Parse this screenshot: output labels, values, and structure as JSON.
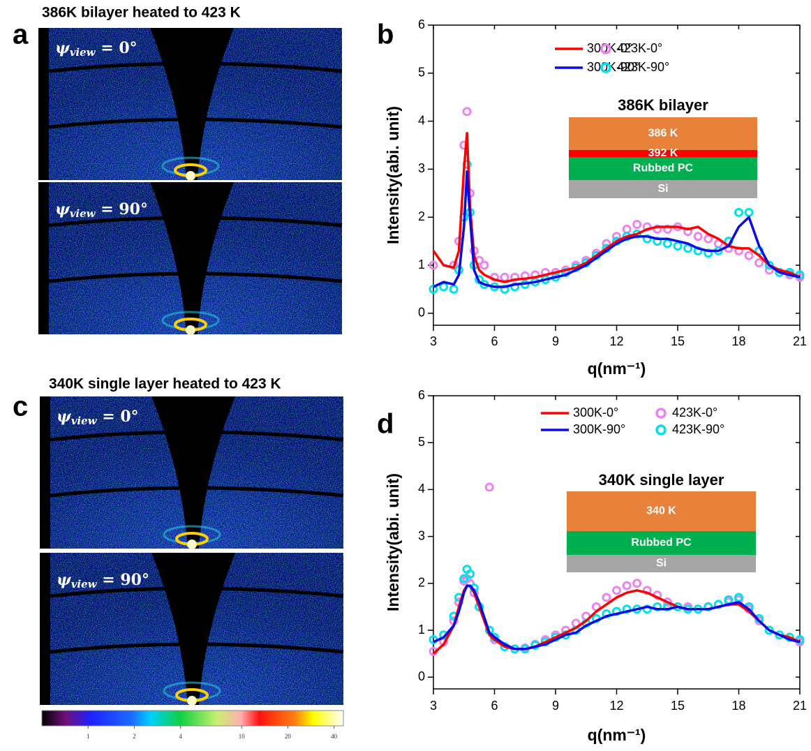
{
  "panel_labels": [
    "a",
    "b",
    "c",
    "d"
  ],
  "images": [
    {
      "title": "386K bilayer heated to 423 K",
      "views": [
        {
          "symbol": "ψ",
          "sub": "view",
          "eq": " = 0°"
        },
        {
          "symbol": "ψ",
          "sub": "view",
          "eq": " = 90°"
        }
      ]
    },
    {
      "title": "340K single layer heated to 423 K",
      "views": [
        {
          "symbol": "ψ",
          "sub": "view",
          "eq": " = 0°"
        },
        {
          "symbol": "ψ",
          "sub": "view",
          "eq": " = 90°"
        }
      ]
    }
  ],
  "colorbar": {
    "scale": "log",
    "lim": [
      0.5,
      46
    ],
    "ticks": [
      1,
      2,
      4,
      10,
      20,
      40
    ]
  },
  "chart_data": [
    {
      "type": "line",
      "xlabel": "q(nm⁻¹)",
      "ylabel": "Intensity(abi. unit)",
      "xlim": [
        3,
        21
      ],
      "ylim": [
        -0.25,
        6
      ],
      "xticks": [
        3,
        6,
        9,
        12,
        15,
        18,
        21
      ],
      "yticks": [
        0,
        1,
        2,
        3,
        4,
        5,
        6
      ],
      "x": [
        3,
        3.5,
        4,
        4.25,
        4.5,
        4.65,
        4.8,
        5,
        5.25,
        5.5,
        6,
        6.5,
        7,
        7.5,
        8,
        8.5,
        9,
        9.5,
        10,
        10.5,
        11,
        11.5,
        12,
        12.5,
        13,
        13.5,
        14,
        14.5,
        15,
        15.5,
        16,
        16.5,
        17,
        17.5,
        18,
        18.5,
        19,
        19.5,
        20,
        20.5,
        21
      ],
      "series": [
        {
          "name": "300K-0°",
          "color": "#ff0000",
          "style": "line",
          "values": [
            1.3,
            1.0,
            0.95,
            1.3,
            3.0,
            3.75,
            2.2,
            1.2,
            0.9,
            0.8,
            0.7,
            0.65,
            0.7,
            0.72,
            0.75,
            0.8,
            0.85,
            0.9,
            0.95,
            1.05,
            1.2,
            1.35,
            1.5,
            1.6,
            1.65,
            1.75,
            1.8,
            1.8,
            1.8,
            1.75,
            1.8,
            1.65,
            1.55,
            1.4,
            1.35,
            1.35,
            1.2,
            1.0,
            0.9,
            0.85,
            0.75
          ]
        },
        {
          "name": "300K-90°",
          "color": "#0a0ae6",
          "style": "line",
          "values": [
            0.55,
            0.65,
            0.6,
            0.8,
            1.8,
            2.95,
            2.0,
            0.9,
            0.65,
            0.6,
            0.55,
            0.55,
            0.6,
            0.62,
            0.65,
            0.7,
            0.75,
            0.8,
            0.9,
            1.0,
            1.15,
            1.3,
            1.45,
            1.55,
            1.6,
            1.6,
            1.55,
            1.55,
            1.5,
            1.45,
            1.35,
            1.3,
            1.3,
            1.4,
            1.8,
            2.0,
            1.4,
            1.0,
            0.85,
            0.8,
            0.75
          ]
        },
        {
          "name": "423K-0°",
          "color": "#ee82ee",
          "style": "marker",
          "values": [
            1.0,
            null,
            1.0,
            1.5,
            3.5,
            4.2,
            2.5,
            1.3,
            1.1,
            1.0,
            0.75,
            0.75,
            0.75,
            0.78,
            0.8,
            0.85,
            0.85,
            0.9,
            1.0,
            1.1,
            1.25,
            1.45,
            1.6,
            1.75,
            1.85,
            1.8,
            1.75,
            1.75,
            1.8,
            1.7,
            1.6,
            1.55,
            1.45,
            1.35,
            1.3,
            1.2,
            1.05,
            0.9,
            0.85,
            0.8,
            0.75
          ]
        },
        {
          "name": "423K-90°",
          "color": "#00e0ee",
          "style": "marker",
          "values": [
            0.5,
            0.55,
            0.5,
            0.9,
            2.0,
            3.1,
            2.1,
            1.0,
            0.7,
            0.6,
            0.55,
            0.5,
            0.55,
            0.6,
            0.65,
            0.7,
            0.75,
            0.85,
            0.95,
            1.05,
            1.2,
            1.35,
            1.5,
            1.6,
            1.65,
            1.55,
            1.5,
            1.45,
            1.4,
            1.35,
            1.3,
            1.25,
            1.3,
            1.5,
            2.1,
            2.1,
            1.3,
            1.0,
            0.85,
            0.85,
            0.8
          ]
        }
      ],
      "inset": {
        "title": "386K bilayer",
        "layers": [
          {
            "label": "386 K",
            "color": "#e8813a"
          },
          {
            "label": "392 K",
            "color": "#ff0000"
          },
          {
            "label": "Rubbed PC",
            "color": "#00b050"
          },
          {
            "label": "Si",
            "color": "#a6a6a6"
          }
        ]
      }
    },
    {
      "type": "line",
      "xlabel": "q(nm⁻¹)",
      "ylabel": "Intensity(abi. unit)",
      "xlim": [
        3,
        21
      ],
      "ylim": [
        -0.25,
        6
      ],
      "xticks": [
        3,
        6,
        9,
        12,
        15,
        18,
        21
      ],
      "yticks": [
        0,
        1,
        2,
        3,
        4,
        5,
        6
      ],
      "x": [
        3,
        3.5,
        4,
        4.25,
        4.5,
        4.65,
        4.8,
        5,
        5.25,
        5.75,
        6,
        6.5,
        7,
        7.5,
        8,
        8.5,
        9,
        9.5,
        10,
        10.5,
        11,
        11.5,
        12,
        12.5,
        13,
        13.5,
        14,
        14.5,
        15,
        15.5,
        16,
        16.5,
        17,
        17.5,
        18,
        18.5,
        19,
        19.5,
        20,
        20.5,
        21
      ],
      "series": [
        {
          "name": "300K-0°",
          "color": "#ff0000",
          "style": "line",
          "values": [
            0.5,
            0.7,
            1.1,
            1.5,
            1.85,
            1.95,
            1.95,
            1.8,
            1.5,
            0.9,
            0.8,
            0.65,
            0.6,
            0.6,
            0.65,
            0.75,
            0.85,
            0.95,
            1.05,
            1.2,
            1.4,
            1.55,
            1.7,
            1.8,
            1.85,
            1.8,
            1.7,
            1.6,
            1.5,
            1.45,
            1.45,
            1.45,
            1.5,
            1.55,
            1.55,
            1.4,
            1.2,
            1.0,
            0.9,
            0.85,
            0.75
          ]
        },
        {
          "name": "300K-90°",
          "color": "#0a0ae6",
          "style": "line",
          "values": [
            0.75,
            0.85,
            1.1,
            1.4,
            1.8,
            1.95,
            1.95,
            1.85,
            1.6,
            0.95,
            0.85,
            0.7,
            0.6,
            0.6,
            0.65,
            0.7,
            0.8,
            0.9,
            0.95,
            1.1,
            1.2,
            1.3,
            1.35,
            1.4,
            1.45,
            1.5,
            1.45,
            1.45,
            1.5,
            1.45,
            1.45,
            1.45,
            1.5,
            1.55,
            1.6,
            1.45,
            1.2,
            1.0,
            0.9,
            0.8,
            0.75
          ]
        },
        {
          "name": "423K-0°",
          "color": "#ee82ee",
          "style": "marker",
          "values": [
            0.55,
            0.75,
            1.2,
            1.6,
            2.05,
            2.1,
            2.0,
            1.8,
            1.5,
            4.05,
            0.8,
            0.65,
            0.6,
            0.62,
            0.7,
            0.8,
            0.9,
            1.0,
            1.15,
            1.3,
            1.5,
            1.7,
            1.85,
            1.95,
            2.0,
            1.85,
            1.75,
            1.6,
            1.5,
            1.5,
            1.45,
            1.5,
            1.55,
            1.6,
            1.65,
            1.45,
            1.2,
            1.0,
            0.9,
            0.85,
            0.75
          ]
        },
        {
          "name": "423K-90°",
          "color": "#00e0ee",
          "style": "marker",
          "values": [
            0.8,
            0.9,
            1.3,
            1.7,
            2.1,
            2.3,
            2.2,
            1.9,
            1.5,
            1.0,
            0.85,
            0.65,
            0.6,
            0.6,
            0.68,
            0.75,
            0.85,
            0.9,
            1.0,
            1.15,
            1.25,
            1.35,
            1.4,
            1.45,
            1.45,
            1.45,
            1.5,
            1.5,
            1.5,
            1.45,
            1.45,
            1.5,
            1.55,
            1.65,
            1.7,
            1.5,
            1.25,
            1.0,
            0.9,
            0.85,
            0.8
          ]
        }
      ],
      "inset": {
        "title": "340K single layer",
        "layers": [
          {
            "label": "340 K",
            "color": "#e8813a"
          },
          {
            "label": "Rubbed PC",
            "color": "#00b050"
          },
          {
            "label": "Si",
            "color": "#a6a6a6"
          }
        ]
      }
    }
  ]
}
